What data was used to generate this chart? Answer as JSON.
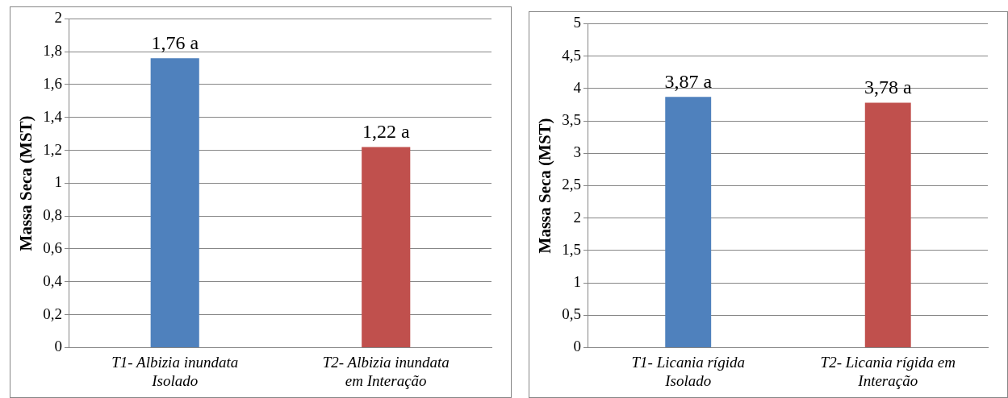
{
  "chart_data": [
    {
      "type": "bar",
      "ylabel": "Massa Seca (MST)",
      "categories": [
        "T1- Albizia inundata Isolado",
        "T2- Albizia inundata em Interação"
      ],
      "values": [
        1.76,
        1.22
      ],
      "colors": [
        "#4f81bd",
        "#c0504d"
      ],
      "value_labels": [
        "1,76 a",
        "1,22 a"
      ],
      "ylim": [
        0,
        2
      ],
      "yticks": [
        0,
        {
          "value": 0.2,
          "label": "0,2"
        },
        {
          "value": 0.4,
          "label": "0,4"
        },
        {
          "value": 0.6,
          "label": "0,6"
        },
        {
          "value": 0.8,
          "label": "0,8"
        },
        1,
        {
          "value": 1.2,
          "label": "1,2"
        },
        {
          "value": 1.4,
          "label": "1,4"
        },
        {
          "value": 1.6,
          "label": "1,6"
        },
        {
          "value": 1.8,
          "label": "1,8"
        },
        2
      ],
      "grid": "y",
      "legend": false
    },
    {
      "type": "bar",
      "ylabel": "Massa Seca (MST)",
      "categories": [
        "T1- Licania rígida Isolado",
        "T2- Licania rígida em Interação"
      ],
      "values": [
        3.87,
        3.78
      ],
      "colors": [
        "#4f81bd",
        "#c0504d"
      ],
      "value_labels": [
        "3,87 a",
        "3,78 a"
      ],
      "ylim": [
        0,
        5
      ],
      "yticks": [
        0,
        {
          "value": 0.5,
          "label": "0,5"
        },
        1,
        {
          "value": 1.5,
          "label": "1,5"
        },
        2,
        {
          "value": 2.5,
          "label": "2,5"
        },
        3,
        {
          "value": 3.5,
          "label": "3,5"
        },
        4,
        {
          "value": 4.5,
          "label": "4,5"
        },
        5
      ],
      "grid": "y",
      "legend": false
    }
  ]
}
